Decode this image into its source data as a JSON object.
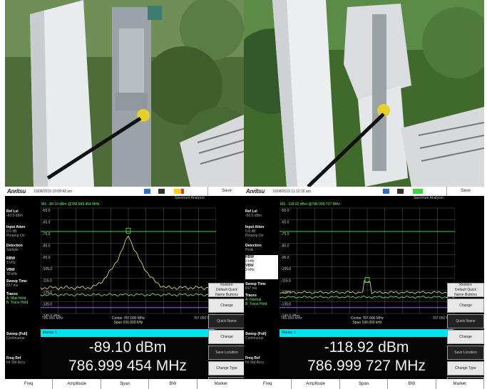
{
  "panels": [
    {
      "id": "before",
      "brand": "Anritsu",
      "datetime": "10/08/2019 10:09:42 am",
      "save_label": "Save",
      "mode": "Spectrum Analyzer",
      "marker_header": "M1: -89.10 dBm @786.999 454 MHz",
      "sidebar": {
        "ref_lvl": {
          "label": "Ref Lvl",
          "value": "-50.0 dBm"
        },
        "input_atten": {
          "label": "Input Atten",
          "lines": [
            "0.0 dB",
            "Preamp On"
          ]
        },
        "detection": {
          "label": "Detection",
          "value": "Sample"
        },
        "rbw": {
          "label": "RBW",
          "value": "3 kHz"
        },
        "vbw": {
          "label": "VBW",
          "value": "30 kHz"
        },
        "sweep_time": {
          "label": "Sweep Time",
          "value": "817 ms"
        },
        "traces": {
          "label": "Traces",
          "lines": [
            "A: Max Hold",
            "B: Trace Hold"
          ]
        },
        "sweep": {
          "label": "Sweep (Full)",
          "value": "Continuous"
        },
        "freq_ref": {
          "label": "Freq Ref",
          "value": "Int Std Accy"
        }
      },
      "y_ticks": [
        "-55.0",
        "-65.0",
        "-75.0",
        "-85.0",
        "-95.0",
        "-105.0",
        "-115.0",
        "-125.0",
        "-135.0",
        "-145.0 dBm"
      ],
      "freq_left": "786.950 MHz",
      "freq_right": "787.050 MHz",
      "center": "Center 787.000 MHz",
      "span": "Span 100.000 kHz",
      "marker_label": "Marker 1",
      "marker_amp": "-89.10 dBm",
      "marker_freq": "786.999 454 MHz",
      "menu": [
        {
          "lines": [
            "Restore",
            "Default Quick",
            "Name Buttons"
          ],
          "dark": false
        },
        {
          "lines": [
            "Change"
          ],
          "dark": false
        },
        {
          "lines": [
            "Quick Name"
          ],
          "dark": true
        },
        {
          "lines": [
            "Change"
          ],
          "dark": false
        },
        {
          "lines": [
            "Save Location"
          ],
          "dark": true
        },
        {
          "lines": [
            "Change Type"
          ],
          "dark": false
        },
        {
          "lines": [
            "Setup JPEG"
          ],
          "dark": true
        }
      ],
      "softkeys": [
        "Freq",
        "Amplitude",
        "Span",
        "BW",
        "Marker"
      ]
    },
    {
      "id": "after",
      "brand": "Anritsu",
      "datetime": "10/08/2019 11:12:16 am",
      "save_label": "Save",
      "mode": "Spectrum Analyzer",
      "marker_header": "M1: -118.92 dBm @786.999 727 MHz",
      "sidebar": {
        "ref_lvl": {
          "label": "Ref Lvl",
          "value": "-50.0 dBm"
        },
        "input_atten": {
          "label": "Input Atten",
          "lines": [
            "0.0 dB",
            "Preamp On"
          ]
        },
        "detection": {
          "label": "Detection",
          "value": "Peak"
        },
        "rbw": {
          "label": "RBW",
          "value": "3 kHz"
        },
        "vbw": {
          "label": "VBW",
          "value": "3 kHz"
        },
        "sweep_time": {
          "label": "Sweep Time",
          "value": "817 ms"
        },
        "traces": {
          "label": "Traces",
          "lines": [
            "A: Normal",
            "B: Trace Hold"
          ]
        },
        "sweep": {
          "label": "Sweep (Full)",
          "value": "Continuous"
        },
        "freq_ref": {
          "label": "Freq Ref",
          "value": "Int Std Accy"
        }
      },
      "y_ticks": [
        "-55.0",
        "-65.0",
        "-75.0",
        "-85.0",
        "-95.0",
        "-105.0",
        "-115.0",
        "-125.0",
        "-135.0",
        "-145.0 dBm"
      ],
      "freq_left": "786.950 MHz",
      "freq_right": "787.050 MHz",
      "center": "Center 787.000 MHz",
      "span": "Span 100.000 kHz",
      "marker_label": "Marker 1",
      "marker_amp": "-118.92 dBm",
      "marker_freq": "786.999 727 MHz",
      "menu": [
        {
          "lines": [
            "Restore",
            "Default Quick",
            "Name Buttons"
          ],
          "dark": false
        },
        {
          "lines": [
            "Change"
          ],
          "dark": false
        },
        {
          "lines": [
            "Quick Name"
          ],
          "dark": true
        },
        {
          "lines": [
            "Change"
          ],
          "dark": false
        },
        {
          "lines": [
            "Save Location"
          ],
          "dark": true
        },
        {
          "lines": [
            "Change Type"
          ],
          "dark": false
        },
        {
          "lines": [
            "Setup JPEG"
          ],
          "dark": true
        }
      ],
      "softkeys": [
        "Freq",
        "Amplitude",
        "Span",
        "BW",
        "Marker"
      ]
    }
  ],
  "colors": {
    "grid": "#5a5a5a",
    "trace": "#d9d36a",
    "trace_hold": "#6cff6c",
    "limit_line": "#2fd82f",
    "purple_line": "#b45cff",
    "marker_bar": "#00e5f0"
  }
}
